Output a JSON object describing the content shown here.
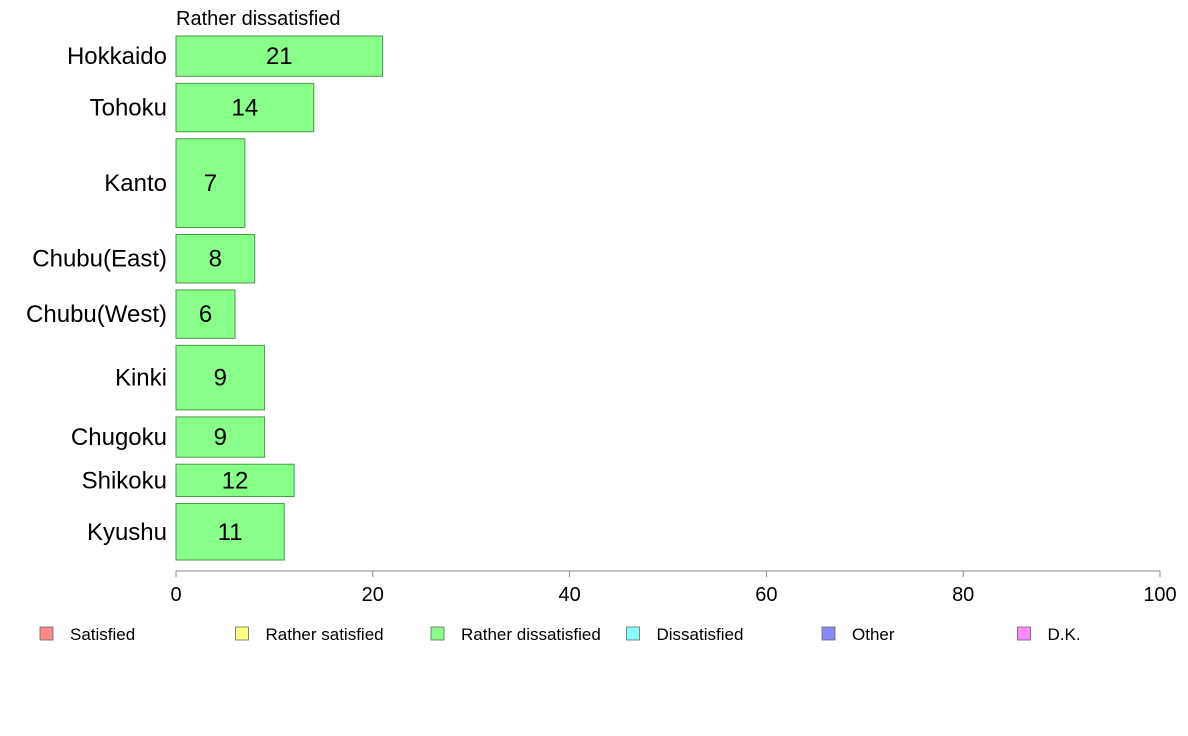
{
  "chart_data": {
    "type": "bar",
    "orientation": "horizontal",
    "title": "Rather dissatisfied",
    "categories": [
      "Hokkaido",
      "Tohoku",
      "Kanto",
      "Chubu(East)",
      "Chubu(West)",
      "Kinki",
      "Chugoku",
      "Shikoku",
      "Kyushu"
    ],
    "values": [
      21,
      14,
      7,
      8,
      6,
      9,
      9,
      12,
      11
    ],
    "bar_thickness_weights": [
      5,
      6,
      11,
      6,
      6,
      8,
      5,
      4,
      7
    ],
    "xlim": [
      0,
      100
    ],
    "xticks": [
      0,
      20,
      40,
      60,
      80,
      100
    ],
    "xlabel": "",
    "ylabel": "",
    "grid": false,
    "bar_color": "#88ff88",
    "bar_edge_color": "#4a9a4a",
    "legend_position": "bottom",
    "legend": [
      {
        "label": "Satisfied",
        "color": "#ff8888"
      },
      {
        "label": "Rather satisfied",
        "color": "#ffff88"
      },
      {
        "label": "Rather dissatisfied",
        "color": "#88ff88"
      },
      {
        "label": "Dissatisfied",
        "color": "#88ffff"
      },
      {
        "label": "Other",
        "color": "#8888ff"
      },
      {
        "label": "D.K.",
        "color": "#ff88ff"
      }
    ]
  }
}
